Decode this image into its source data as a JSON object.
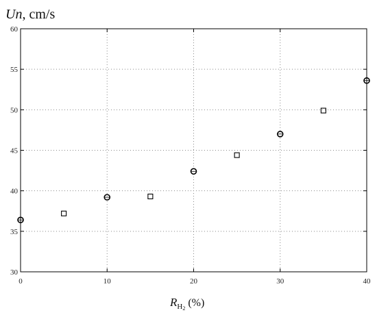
{
  "chart_data": {
    "type": "scatter",
    "ylabel": {
      "italic": "Un",
      "rest": ", cm/s"
    },
    "xlabel": {
      "symbol": "R",
      "subscript": "H",
      "subsub": "2",
      "unit": "(%)"
    },
    "xlim": [
      0,
      40
    ],
    "ylim": [
      30,
      60
    ],
    "xticks": [
      "0",
      "10",
      "20",
      "30",
      "40"
    ],
    "yticks": [
      "30",
      "35",
      "40",
      "45",
      "50",
      "55",
      "60"
    ],
    "grid": true,
    "series": [
      {
        "marker": "circle",
        "points": [
          {
            "x": 0,
            "y": 36.4
          },
          {
            "x": 10,
            "y": 39.2
          },
          {
            "x": 20,
            "y": 42.4
          },
          {
            "x": 30,
            "y": 47.0
          },
          {
            "x": 40,
            "y": 53.6
          }
        ]
      },
      {
        "marker": "square",
        "points": [
          {
            "x": 5,
            "y": 37.2
          },
          {
            "x": 15,
            "y": 39.3
          },
          {
            "x": 25,
            "y": 44.4
          },
          {
            "x": 35,
            "y": 49.9
          }
        ]
      }
    ]
  }
}
